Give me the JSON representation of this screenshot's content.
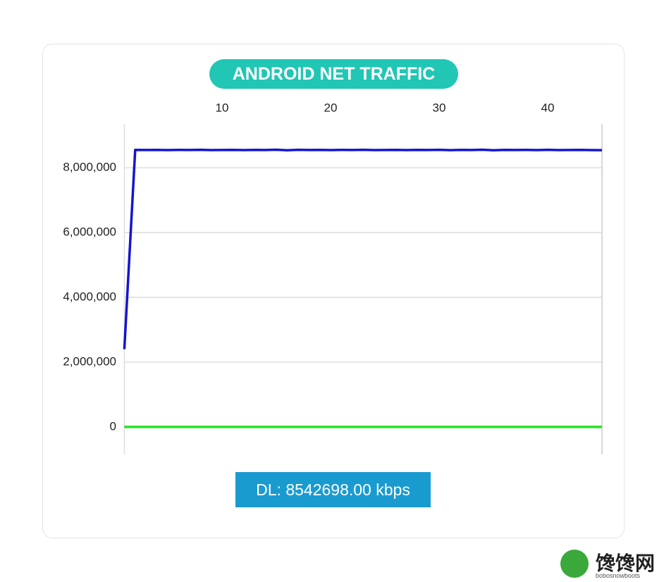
{
  "chart_data": {
    "type": "line",
    "title": "ANDROID NET TRAFFIC",
    "x": [
      1,
      2,
      3,
      4,
      5,
      6,
      7,
      8,
      9,
      10,
      11,
      12,
      13,
      14,
      15,
      16,
      17,
      18,
      19,
      20,
      21,
      22,
      23,
      24,
      25,
      26,
      27,
      28,
      29,
      30,
      31,
      32,
      33,
      34,
      35,
      36,
      37,
      38,
      39,
      40,
      41,
      42,
      43,
      44,
      45
    ],
    "series": [
      {
        "color": "#1414d2",
        "values": [
          2400000,
          8550000,
          8548000,
          8552000,
          8545000,
          8550000,
          8547000,
          8553000,
          8546000,
          8549000,
          8551000,
          8544000,
          8552000,
          8548000,
          8555000,
          8540000,
          8553000,
          8547000,
          8551000,
          8545000,
          8550000,
          8549000,
          8553000,
          8546000,
          8548000,
          8552000,
          8545000,
          8550000,
          8547000,
          8554000,
          8543000,
          8551000,
          8548000,
          8556000,
          8541000,
          8552000,
          8547000,
          8550000,
          8546000,
          8553000,
          8544000,
          8549000,
          8551000,
          8545000,
          8542698
        ]
      },
      {
        "color": "#22e322",
        "values": [
          0,
          0,
          0,
          0,
          0,
          0,
          0,
          0,
          0,
          0,
          0,
          0,
          0,
          0,
          0,
          0,
          0,
          0,
          0,
          0,
          0,
          0,
          0,
          0,
          0,
          0,
          0,
          0,
          0,
          0,
          0,
          0,
          0,
          0,
          0,
          0,
          0,
          0,
          0,
          0,
          0,
          0,
          0,
          0,
          0
        ]
      }
    ],
    "xlim": [
      1,
      45
    ],
    "xticks": [
      10,
      20,
      30,
      40
    ],
    "ylim": [
      -850000,
      9350000
    ],
    "yticks": [
      0,
      {
        "value": 2000000,
        "label": "2,000,000"
      },
      {
        "value": 4000000,
        "label": "4,000,000"
      },
      {
        "value": 6000000,
        "label": "6,000,000"
      },
      {
        "value": 8000000,
        "label": "8,000,000"
      }
    ],
    "grid": true,
    "status": "DL: 8542698.00 kbps"
  },
  "watermark": {
    "title": "馋馋网",
    "subtitle": "bobosnowboots"
  }
}
